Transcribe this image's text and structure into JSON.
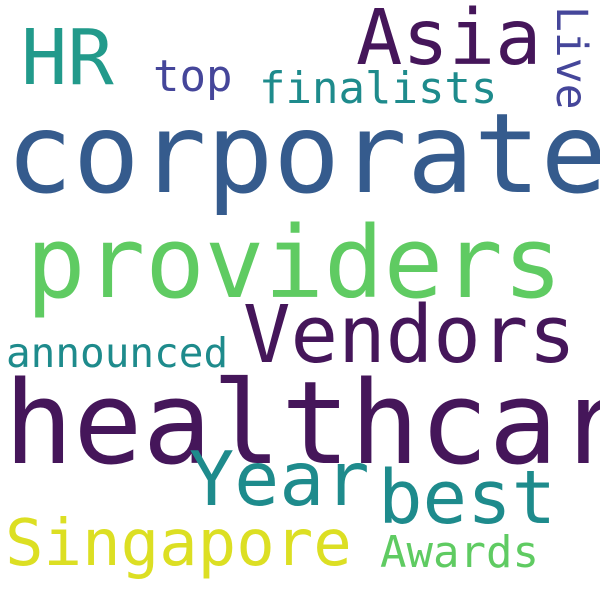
{
  "wordcloud": {
    "words": {
      "healthcare": "healthcare",
      "corporate": "corporate",
      "providers": "providers",
      "vendors": "Vendors",
      "asia": "Asia",
      "hr": "HR",
      "year": "Year",
      "best": "best",
      "singapore": "Singapore",
      "awards": "Awards",
      "finalists": "finalists",
      "top": "top",
      "announced": "announced",
      "live": "Live"
    },
    "colors": {
      "dark_purple": "#45165a",
      "blue": "#355b8d",
      "indigo": "#45469a",
      "teal": "#1e8b8c",
      "green_teal": "#229a8b",
      "green": "#5fcb62",
      "yellow": "#dcdf23"
    }
  }
}
